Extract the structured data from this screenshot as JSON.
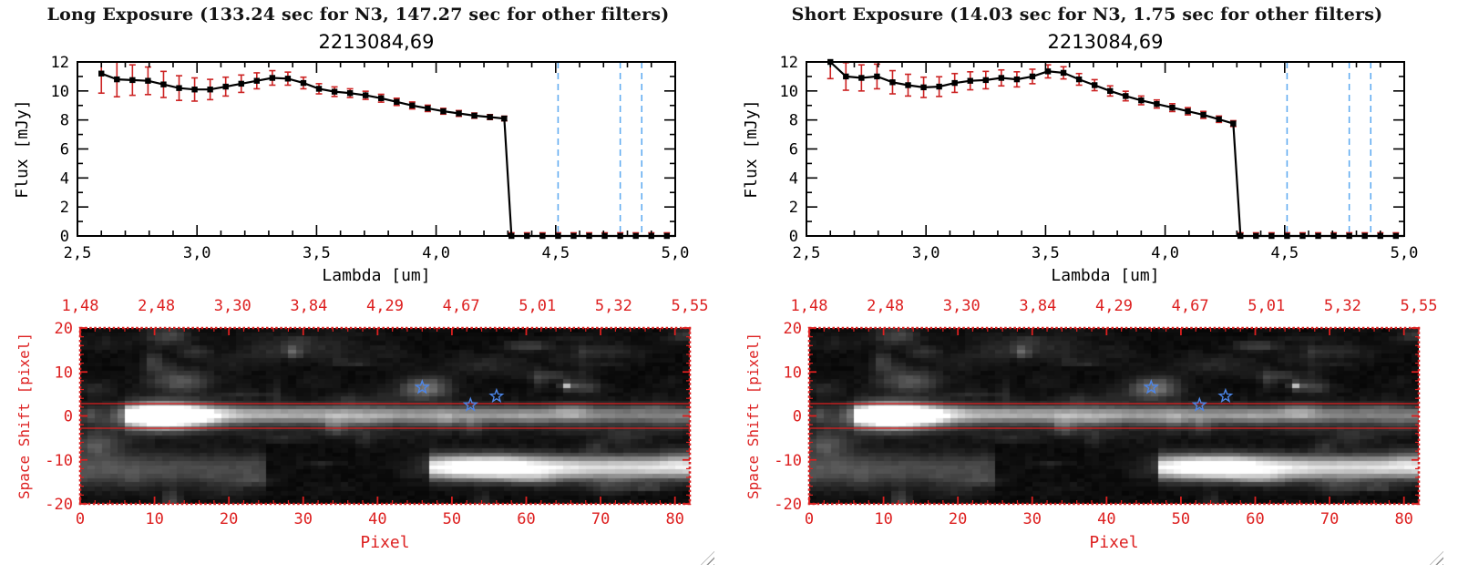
{
  "window": {
    "background": "#ffffff"
  },
  "headers": [
    "Long Exposure (133.24 sec for N3, 147.27 sec for other filters)",
    "Short Exposure (14.03 sec for N3, 1.75 sec for other filters)"
  ],
  "chart_data": [
    {
      "id": "spectrum-long",
      "panel": 0,
      "type": "line",
      "title": "2213084,69",
      "xlabel": "Lambda [um]",
      "ylabel": "Flux [mJy]",
      "xlim": [
        2.5,
        5.0
      ],
      "ylim": [
        0,
        12
      ],
      "xticks": [
        2.5,
        3.0,
        3.5,
        4.0,
        4.5,
        5.0
      ],
      "xtick_labels": [
        "2,5",
        "3,0",
        "3,5",
        "4,0",
        "4,5",
        "5,0"
      ],
      "yticks": [
        0,
        2,
        4,
        6,
        8,
        10,
        12
      ],
      "ytick_labels": [
        "0",
        "2",
        "4",
        "6",
        "8",
        "10",
        "12"
      ],
      "marker": "filled-square",
      "line_color": "#000000",
      "error_color": "#cc2222",
      "vlines": [
        4.51,
        4.77,
        4.86
      ],
      "vline_color": "#5aa8f0",
      "vline_style": "dashed",
      "x": [
        2.6,
        2.665,
        2.73,
        2.795,
        2.86,
        2.925,
        2.99,
        3.055,
        3.12,
        3.185,
        3.25,
        3.315,
        3.38,
        3.445,
        3.51,
        3.575,
        3.64,
        3.705,
        3.77,
        3.835,
        3.9,
        3.965,
        4.03,
        4.095,
        4.16,
        4.225,
        4.285,
        4.315,
        4.38,
        4.445,
        4.51,
        4.575,
        4.64,
        4.705,
        4.77,
        4.835,
        4.9,
        4.965,
        5.0
      ],
      "y": [
        11.2,
        10.8,
        10.75,
        10.7,
        10.45,
        10.2,
        10.1,
        10.1,
        10.3,
        10.5,
        10.7,
        10.9,
        10.85,
        10.55,
        10.15,
        9.95,
        9.85,
        9.7,
        9.5,
        9.25,
        9.0,
        8.8,
        8.6,
        8.45,
        8.3,
        8.2,
        8.1,
        0,
        0,
        0,
        0,
        0,
        0,
        0,
        0,
        0,
        0,
        0,
        0
      ],
      "yerr": [
        1.35,
        1.2,
        1.05,
        0.95,
        0.9,
        0.85,
        0.8,
        0.7,
        0.65,
        0.6,
        0.55,
        0.5,
        0.45,
        0.4,
        0.35,
        0.33,
        0.3,
        0.28,
        0.27,
        0.25,
        0.24,
        0.22,
        0.2,
        0.2,
        0.18,
        0.17,
        0.16,
        0.22,
        0.22,
        0.22,
        0.22,
        0.22,
        0.22,
        0.22,
        0.22,
        0.22,
        0.22,
        0.22,
        0
      ]
    },
    {
      "id": "spectrum-short",
      "panel": 1,
      "type": "line",
      "title": "2213084,69",
      "xlabel": "Lambda [um]",
      "ylabel": "Flux [mJy]",
      "xlim": [
        2.5,
        5.0
      ],
      "ylim": [
        0,
        12
      ],
      "xticks": [
        2.5,
        3.0,
        3.5,
        4.0,
        4.5,
        5.0
      ],
      "xtick_labels": [
        "2,5",
        "3,0",
        "3,5",
        "4,0",
        "4,5",
        "5,0"
      ],
      "yticks": [
        0,
        2,
        4,
        6,
        8,
        10,
        12
      ],
      "ytick_labels": [
        "0",
        "2",
        "4",
        "6",
        "8",
        "10",
        "12"
      ],
      "marker": "filled-square",
      "line_color": "#000000",
      "error_color": "#cc2222",
      "vlines": [
        4.51,
        4.77,
        4.86
      ],
      "vline_color": "#5aa8f0",
      "vline_style": "dashed",
      "x": [
        2.6,
        2.665,
        2.73,
        2.795,
        2.86,
        2.925,
        2.99,
        3.055,
        3.12,
        3.185,
        3.25,
        3.315,
        3.38,
        3.445,
        3.51,
        3.575,
        3.64,
        3.705,
        3.77,
        3.835,
        3.9,
        3.965,
        4.03,
        4.095,
        4.16,
        4.225,
        4.285,
        4.315,
        4.38,
        4.445,
        4.51,
        4.575,
        4.64,
        4.705,
        4.77,
        4.835,
        4.9,
        4.965,
        5.0
      ],
      "y": [
        12.0,
        11.0,
        10.9,
        11.0,
        10.6,
        10.4,
        10.25,
        10.3,
        10.55,
        10.7,
        10.75,
        10.9,
        10.8,
        11.0,
        11.35,
        11.25,
        10.8,
        10.4,
        10.0,
        9.65,
        9.35,
        9.1,
        8.85,
        8.6,
        8.35,
        8.05,
        7.75,
        0,
        0,
        0,
        0,
        0,
        0,
        0,
        0,
        0,
        0,
        0,
        0
      ],
      "yerr": [
        1.15,
        0.95,
        0.9,
        0.85,
        0.8,
        0.75,
        0.7,
        0.68,
        0.65,
        0.62,
        0.6,
        0.55,
        0.52,
        0.5,
        0.45,
        0.42,
        0.4,
        0.38,
        0.35,
        0.33,
        0.3,
        0.28,
        0.27,
        0.25,
        0.24,
        0.22,
        0.2,
        0.22,
        0.22,
        0.22,
        0.22,
        0.22,
        0.22,
        0.22,
        0.22,
        0.22,
        0.22,
        0.22,
        0
      ]
    },
    {
      "id": "image-long",
      "panel": 0,
      "type": "heatmap",
      "xlabel": "Pixel",
      "ylabel": "Space Shift [pixel]",
      "xlim": [
        0,
        82
      ],
      "ylim": [
        -20,
        20
      ],
      "xticks": [
        0,
        10,
        20,
        30,
        40,
        50,
        60,
        70,
        80
      ],
      "xtick_labels": [
        "0",
        "10",
        "20",
        "30",
        "40",
        "50",
        "60",
        "70",
        "80"
      ],
      "yticks": [
        20,
        10,
        0,
        -10,
        -20
      ],
      "ytick_labels": [
        "20",
        "10",
        "0",
        "-10",
        "-20"
      ],
      "top_axis_wavelength_labels": [
        "1,48",
        "2,48",
        "3,30",
        "3,84",
        "4,29",
        "4,67",
        "5,01",
        "5,32",
        "5,55"
      ],
      "axis_color": "#dd2020",
      "aperture_lines_y": [
        2.8,
        -2.8
      ],
      "aperture_color": "#dd2020",
      "stars": [
        {
          "x": 46,
          "y": 6.5
        },
        {
          "x": 52.5,
          "y": 2.5
        },
        {
          "x": 56,
          "y": 4.5
        }
      ],
      "star_color": "#4d86e8",
      "colormap": "grayscale",
      "noise_seed": 7,
      "features": [
        {
          "kind": "blob",
          "x": 11,
          "y": 0,
          "sx": 4.0,
          "sy": 1.9,
          "amp": 1.35
        },
        {
          "kind": "streak",
          "x0": 6,
          "x1": 82,
          "y": 0.3,
          "sy": 1.25,
          "amp0": 0.55,
          "amp1": 0.34
        },
        {
          "kind": "streak",
          "x0": 6,
          "x1": 82,
          "y": -0.5,
          "sy": 2.6,
          "amp0": 0.18,
          "amp1": 0.1
        },
        {
          "kind": "streak",
          "x0": 47,
          "x1": 82,
          "y": -12,
          "sy": 1.9,
          "amp0": 0.75,
          "amp1": 0.85
        },
        {
          "kind": "blob",
          "x": 54,
          "y": -12,
          "sx": 5.0,
          "sy": 2.0,
          "amp": 0.5
        },
        {
          "kind": "streak",
          "x0": 0,
          "x1": 24,
          "y": -12.5,
          "sy": 2.8,
          "amp0": 0.3,
          "amp1": 0.22
        },
        {
          "kind": "blob",
          "x": 2,
          "y": -6,
          "sx": 2.5,
          "sy": 2.5,
          "amp": 0.22
        },
        {
          "kind": "blob",
          "x": 46,
          "y": 6.5,
          "sx": 2.2,
          "sy": 1.7,
          "amp": 0.42
        },
        {
          "kind": "blob",
          "x": 13,
          "y": 8,
          "sx": 2.8,
          "sy": 1.8,
          "amp": 0.3
        },
        {
          "kind": "blob",
          "x": 65,
          "y": 7,
          "sx": 0.55,
          "sy": 0.55,
          "amp": 0.6
        },
        {
          "kind": "blob",
          "x": 30,
          "y": 16,
          "sx": 5.0,
          "sy": 2.0,
          "amp": 0.12
        },
        {
          "kind": "blob",
          "x": 55,
          "y": 12,
          "sx": 4.0,
          "sy": 1.5,
          "amp": 0.1
        },
        {
          "kind": "blob",
          "x": 70,
          "y": 15,
          "sx": 3.0,
          "sy": 1.5,
          "amp": 0.12
        }
      ]
    },
    {
      "id": "image-short",
      "panel": 1,
      "type": "heatmap",
      "xlabel": "Pixel",
      "ylabel": "Space Shift [pixel]",
      "xlim": [
        0,
        82
      ],
      "ylim": [
        -20,
        20
      ],
      "xticks": [
        0,
        10,
        20,
        30,
        40,
        50,
        60,
        70,
        80
      ],
      "xtick_labels": [
        "0",
        "10",
        "20",
        "30",
        "40",
        "50",
        "60",
        "70",
        "80"
      ],
      "yticks": [
        20,
        10,
        0,
        -10,
        -20
      ],
      "ytick_labels": [
        "20",
        "10",
        "0",
        "-10",
        "-20"
      ],
      "top_axis_wavelength_labels": [
        "1,48",
        "2,48",
        "3,30",
        "3,84",
        "4,29",
        "4,67",
        "5,01",
        "5,32",
        "5,55"
      ],
      "axis_color": "#dd2020",
      "aperture_lines_y": [
        2.8,
        -2.8
      ],
      "aperture_color": "#dd2020",
      "stars": [
        {
          "x": 46,
          "y": 6.5
        },
        {
          "x": 52.5,
          "y": 2.5
        },
        {
          "x": 56,
          "y": 4.5
        }
      ],
      "star_color": "#4d86e8",
      "colormap": "grayscale",
      "noise_seed": 7,
      "features": [
        {
          "kind": "blob",
          "x": 11,
          "y": 0,
          "sx": 4.0,
          "sy": 1.9,
          "amp": 1.35
        },
        {
          "kind": "streak",
          "x0": 6,
          "x1": 82,
          "y": 0.3,
          "sy": 1.25,
          "amp0": 0.55,
          "amp1": 0.34
        },
        {
          "kind": "streak",
          "x0": 6,
          "x1": 82,
          "y": -0.5,
          "sy": 2.6,
          "amp0": 0.18,
          "amp1": 0.1
        },
        {
          "kind": "streak",
          "x0": 47,
          "x1": 82,
          "y": -12,
          "sy": 1.9,
          "amp0": 0.75,
          "amp1": 0.85
        },
        {
          "kind": "blob",
          "x": 54,
          "y": -12,
          "sx": 5.0,
          "sy": 2.0,
          "amp": 0.5
        },
        {
          "kind": "streak",
          "x0": 0,
          "x1": 24,
          "y": -12.5,
          "sy": 2.8,
          "amp0": 0.3,
          "amp1": 0.22
        },
        {
          "kind": "blob",
          "x": 2,
          "y": -6,
          "sx": 2.5,
          "sy": 2.5,
          "amp": 0.22
        },
        {
          "kind": "blob",
          "x": 46,
          "y": 6.5,
          "sx": 2.2,
          "sy": 1.7,
          "amp": 0.42
        },
        {
          "kind": "blob",
          "x": 13,
          "y": 8,
          "sx": 2.8,
          "sy": 1.8,
          "amp": 0.3
        },
        {
          "kind": "blob",
          "x": 65,
          "y": 7,
          "sx": 0.55,
          "sy": 0.55,
          "amp": 0.6
        },
        {
          "kind": "blob",
          "x": 30,
          "y": 16,
          "sx": 5.0,
          "sy": 2.0,
          "amp": 0.12
        },
        {
          "kind": "blob",
          "x": 55,
          "y": 12,
          "sx": 4.0,
          "sy": 1.5,
          "amp": 0.1
        },
        {
          "kind": "blob",
          "x": 70,
          "y": 15,
          "sx": 3.0,
          "sy": 1.5,
          "amp": 0.12
        }
      ]
    }
  ]
}
